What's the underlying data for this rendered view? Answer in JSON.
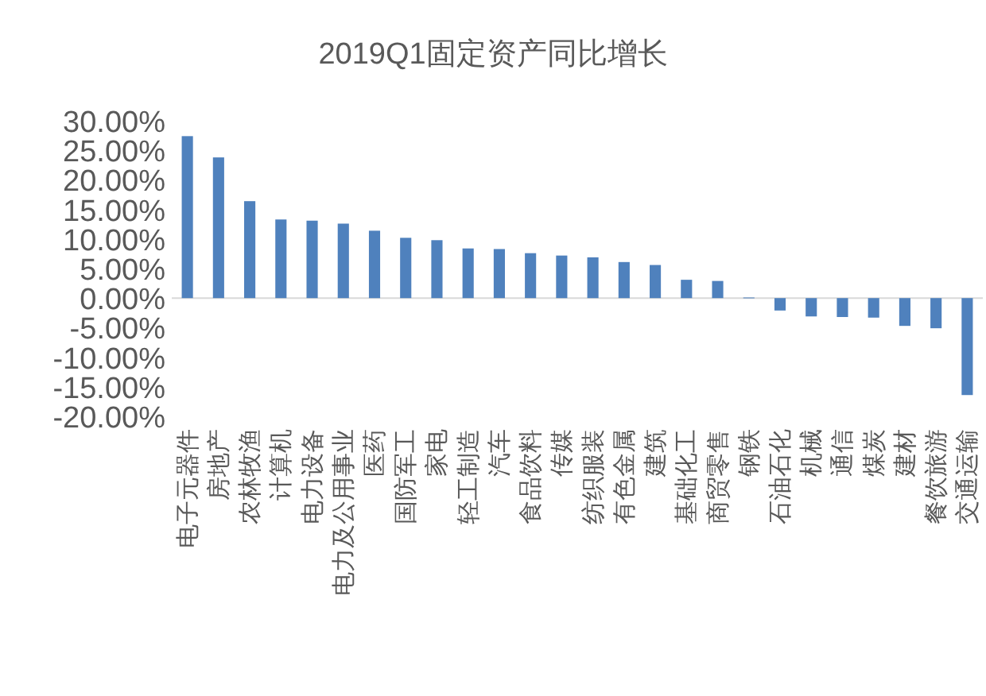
{
  "chart_data": {
    "type": "bar",
    "title": "2019Q1固定资产同比增长",
    "categories": [
      "电子元器件",
      "房地产",
      "农林牧渔",
      "计算机",
      "电力设备",
      "电力及公用事业",
      "医药",
      "国防军工",
      "家电",
      "轻工制造",
      "汽车",
      "食品饮料",
      "传媒",
      "纺织服装",
      "有色金属",
      "建筑",
      "基础化工",
      "商贸零售",
      "钢铁",
      "石油石化",
      "机械",
      "通信",
      "煤炭",
      "建材",
      "餐饮旅游",
      "交通运输"
    ],
    "values": [
      27.4,
      23.8,
      16.4,
      13.3,
      13.1,
      12.6,
      11.4,
      10.2,
      9.8,
      8.4,
      8.3,
      7.6,
      7.2,
      6.9,
      6.1,
      5.6,
      3.1,
      2.9,
      0.1,
      -2.1,
      -3.1,
      -3.2,
      -3.3,
      -4.7,
      -5.1,
      -16.4
    ],
    "color": "#4f81bd",
    "ylim": [
      -20,
      30
    ],
    "yticks": [
      {
        "value": 30,
        "label": "30.00%"
      },
      {
        "value": 25,
        "label": "25.00%"
      },
      {
        "value": 20,
        "label": "20.00%"
      },
      {
        "value": 15,
        "label": "15.00%"
      },
      {
        "value": 10,
        "label": "10.00%"
      },
      {
        "value": 5,
        "label": "5.00%"
      },
      {
        "value": 0,
        "label": "0.00%"
      },
      {
        "value": -5,
        "label": "-5.00%"
      },
      {
        "value": -10,
        "label": "-10.00%"
      },
      {
        "value": -15,
        "label": "-15.00%"
      },
      {
        "value": -20,
        "label": "-20.00%"
      }
    ]
  }
}
